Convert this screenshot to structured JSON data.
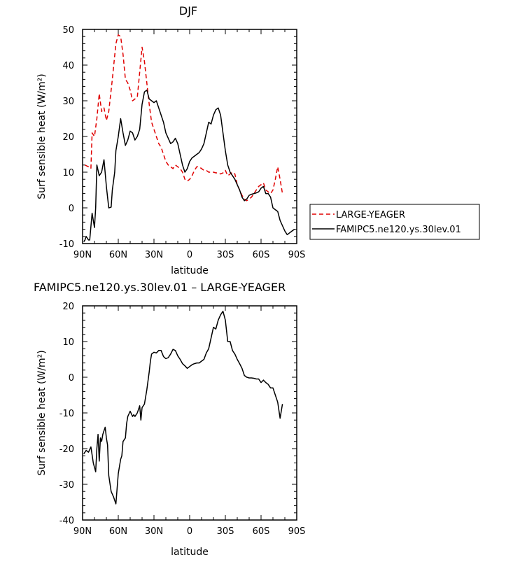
{
  "chart_data": [
    {
      "type": "line",
      "title": "DJF",
      "xlabel": "latitude",
      "ylabel": "Surf sensible heat (W/m²)",
      "xlim": [
        90,
        -90
      ],
      "ylim": [
        -10,
        50
      ],
      "xticks": [
        90,
        60,
        30,
        0,
        -30,
        -60,
        -90
      ],
      "xtick_labels": [
        "90N",
        "60N",
        "30N",
        "0",
        "30S",
        "60S",
        "90S"
      ],
      "yticks": [
        -10,
        0,
        10,
        20,
        30,
        40,
        50
      ],
      "ytick_labels": [
        "-10",
        "0",
        "10",
        "20",
        "30",
        "40",
        "50"
      ],
      "legend": {
        "placement": "right, outside plot"
      },
      "series": [
        {
          "name": "LARGE-YEAGER",
          "color": "#e00000",
          "dash": "dashed",
          "x": [
            88,
            85,
            83,
            82,
            80,
            78,
            76,
            74,
            72,
            70,
            68,
            65,
            62,
            60,
            58,
            56,
            54,
            52,
            50,
            48,
            46,
            44,
            42,
            40,
            38,
            36,
            34,
            32,
            30,
            28,
            26,
            24,
            22,
            20,
            18,
            16,
            14,
            12,
            10,
            8,
            6,
            4,
            2,
            0,
            -2,
            -4,
            -6,
            -8,
            -10,
            -12,
            -14,
            -16,
            -18,
            -20,
            -22,
            -24,
            -26,
            -28,
            -30,
            -32,
            -34,
            -36,
            -38,
            -40,
            -42,
            -44,
            -46,
            -48,
            -50,
            -52,
            -54,
            -56,
            -58,
            -60,
            -62,
            -64,
            -66,
            -68,
            -70,
            -72,
            -74,
            -76,
            -78
          ],
          "y": [
            12,
            11.5,
            11,
            21,
            20,
            25,
            32,
            27,
            28,
            24.5,
            27,
            36,
            46,
            48.5,
            48,
            43,
            36,
            35,
            33,
            30,
            30.5,
            31,
            38,
            45,
            41,
            35,
            29,
            24,
            22,
            20,
            18,
            17,
            15,
            13,
            12,
            11.5,
            11,
            12,
            11.5,
            11,
            10,
            8,
            7.5,
            8,
            9,
            10.5,
            11.5,
            11.5,
            11,
            10.5,
            10.5,
            10,
            10,
            10,
            9.8,
            9.8,
            9.5,
            9.8,
            10.5,
            9,
            9.5,
            10,
            9.5,
            6.5,
            5,
            3.5,
            2.5,
            2,
            2.5,
            3,
            4,
            5,
            6,
            6.5,
            7,
            5,
            4.5,
            4,
            5,
            8,
            11.5,
            8,
            4
          ]
        },
        {
          "name": "FAMIPC5.ne120.ys.30lev.01",
          "color": "#000000",
          "dash": "solid",
          "x": [
            89,
            88,
            87,
            86,
            85,
            84,
            82,
            80,
            79,
            78,
            76,
            74,
            72,
            70,
            68,
            66,
            65,
            63,
            62,
            60,
            58,
            56,
            54,
            52,
            50,
            48,
            46,
            44,
            42,
            40,
            38,
            36,
            34,
            32,
            30,
            28,
            26,
            24,
            22,
            20,
            18,
            16,
            14,
            12,
            10,
            8,
            6,
            4,
            2,
            0,
            -2,
            -4,
            -6,
            -8,
            -10,
            -12,
            -14,
            -16,
            -18,
            -20,
            -22,
            -24,
            -26,
            -28,
            -30,
            -32,
            -34,
            -36,
            -38,
            -40,
            -42,
            -44,
            -46,
            -48,
            -50,
            -52,
            -54,
            -56,
            -58,
            -60,
            -62,
            -64,
            -66,
            -68,
            -70,
            -72,
            -74,
            -76,
            -78,
            -80,
            -82,
            -84,
            -86,
            -88
          ],
          "y": [
            -9.5,
            -9,
            -8,
            -8.5,
            -9,
            -9,
            -1.5,
            -5.5,
            0,
            12,
            9,
            10,
            13.5,
            6,
            0,
            0.2,
            5,
            10,
            16,
            20,
            25,
            21,
            17.5,
            19,
            21.5,
            21,
            19,
            20,
            22,
            29,
            32.5,
            33,
            30.5,
            30,
            29.5,
            30,
            28,
            26,
            24,
            21,
            19.5,
            18,
            18.5,
            19.5,
            18,
            15,
            12,
            10,
            11,
            13,
            14,
            14.5,
            15,
            15.5,
            16.5,
            18,
            21,
            24,
            23.5,
            26,
            27.5,
            28,
            26,
            21,
            16,
            12,
            10,
            9,
            8,
            6.5,
            5,
            3,
            2,
            2.5,
            3.5,
            3.8,
            4,
            4.2,
            4.5,
            5.5,
            6,
            4,
            4,
            3,
            0,
            -0.5,
            -1,
            -3.5,
            -5,
            -6.5,
            -7.5,
            -7,
            -6.5,
            -6
          ]
        }
      ]
    },
    {
      "type": "line",
      "title": "FAMIPC5.ne120.ys.30lev.01 – LARGE-YEAGER",
      "xlabel": "latitude",
      "ylabel": "Surf sensible heat (W/m²)",
      "xlim": [
        90,
        -90
      ],
      "ylim": [
        -40,
        20
      ],
      "xticks": [
        90,
        60,
        30,
        0,
        -30,
        -60,
        -90
      ],
      "xtick_labels": [
        "90N",
        "60N",
        "30N",
        "0",
        "30S",
        "60S",
        "90S"
      ],
      "yticks": [
        -40,
        -30,
        -20,
        -10,
        0,
        10,
        20
      ],
      "ytick_labels": [
        "-40",
        "-30",
        "-20",
        "-10",
        "0",
        "10",
        "20"
      ],
      "series": [
        {
          "color": "#000000",
          "dash": "solid",
          "x": [
            89,
            87,
            85,
            83,
            81,
            79,
            78,
            77,
            76,
            75,
            74,
            73,
            71,
            70,
            69,
            68,
            66,
            64,
            62,
            60,
            58,
            57,
            56,
            54,
            53,
            52,
            50,
            48,
            47,
            46,
            44,
            42,
            41,
            40,
            38,
            36,
            34,
            33,
            32,
            30,
            28,
            26,
            24,
            22,
            20,
            18,
            16,
            14,
            12,
            10,
            8,
            6,
            4,
            2,
            0,
            -2,
            -4,
            -6,
            -8,
            -10,
            -12,
            -14,
            -16,
            -18,
            -20,
            -22,
            -24,
            -26,
            -28,
            -30,
            -32,
            -34,
            -36,
            -38,
            -40,
            -42,
            -44,
            -46,
            -48,
            -50,
            -52,
            -54,
            -56,
            -58,
            -60,
            -62,
            -64,
            -66,
            -68,
            -70,
            -72,
            -74,
            -76,
            -78
          ],
          "y": [
            -21.5,
            -20.5,
            -21,
            -19.5,
            -24,
            -26.5,
            -20,
            -16,
            -23.5,
            -17,
            -18,
            -16,
            -14,
            -17,
            -19,
            -27.5,
            -32,
            -33.5,
            -35.5,
            -27,
            -23,
            -22,
            -18,
            -17,
            -13,
            -11,
            -9.5,
            -11,
            -10.5,
            -11,
            -10,
            -8,
            -12,
            -8.5,
            -7.5,
            -3.5,
            1.5,
            4.5,
            6.5,
            7,
            6.8,
            7.5,
            7.5,
            5.8,
            5.2,
            5.5,
            6.5,
            7.8,
            7.5,
            6,
            5,
            3.8,
            3.2,
            2.5,
            3,
            3.5,
            3.8,
            4,
            4,
            4.5,
            5,
            6.8,
            8,
            11,
            14,
            13.5,
            16,
            17.5,
            18.5,
            16,
            10,
            10,
            7.5,
            6.5,
            5,
            3.8,
            2.5,
            0.5,
            0,
            -0.2,
            -0.2,
            -0.3,
            -0.5,
            -0.5,
            -1.5,
            -0.8,
            -1.5,
            -2,
            -3,
            -3,
            -5,
            -7,
            -11.5,
            -7.5
          ]
        }
      ]
    }
  ]
}
